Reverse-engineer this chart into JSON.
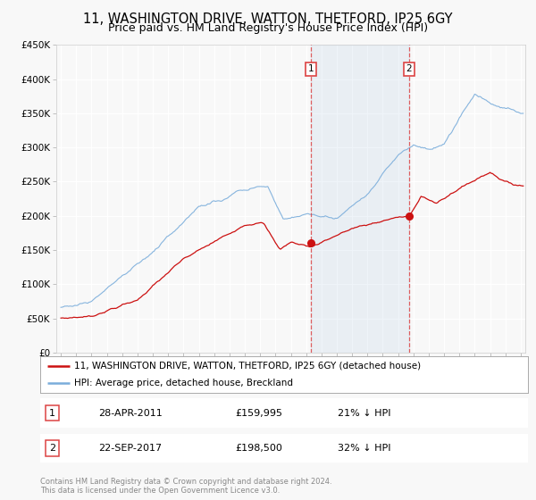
{
  "title": "11, WASHINGTON DRIVE, WATTON, THETFORD, IP25 6GY",
  "subtitle": "Price paid vs. HM Land Registry's House Price Index (HPI)",
  "legend_label_red": "11, WASHINGTON DRIVE, WATTON, THETFORD, IP25 6GY (detached house)",
  "legend_label_blue": "HPI: Average price, detached house, Breckland",
  "footer": "Contains HM Land Registry data © Crown copyright and database right 2024.\nThis data is licensed under the Open Government Licence v3.0.",
  "transaction1_date": "28-APR-2011",
  "transaction1_price": "£159,995",
  "transaction1_hpi": "21% ↓ HPI",
  "transaction2_date": "22-SEP-2017",
  "transaction2_price": "£198,500",
  "transaction2_hpi": "32% ↓ HPI",
  "marker1_x": 2011.33,
  "marker1_y": 160000,
  "marker2_x": 2017.72,
  "marker2_y": 199000,
  "vline1_x": 2011.33,
  "vline2_x": 2017.72,
  "ylim": [
    0,
    450000
  ],
  "xlim_start": 1994.7,
  "xlim_end": 2025.3,
  "background_color": "#f8f8f8",
  "plot_bg_color": "#f8f8f8",
  "red_color": "#cc1111",
  "blue_color": "#7aaddb",
  "vline_color": "#dd4444",
  "grid_color": "#ffffff",
  "title_fontsize": 10.5,
  "subtitle_fontsize": 9,
  "tick_fontsize": 7.5,
  "legend_fontsize": 7.5,
  "table_fontsize": 8
}
